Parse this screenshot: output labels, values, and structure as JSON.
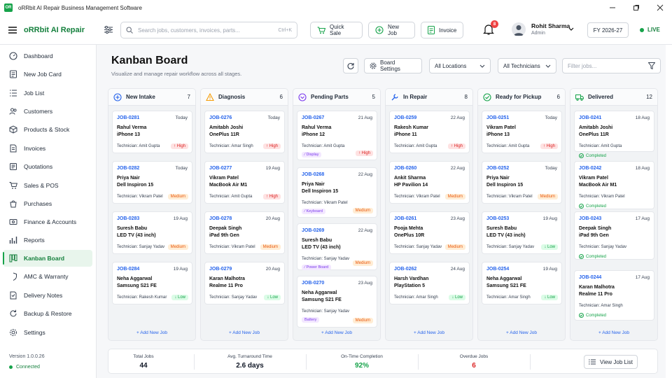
{
  "app": {
    "icon_text": "OR",
    "window_title": "oRRbit AI Repair Business Management Software",
    "brand": "oRRbit AI Repair"
  },
  "topbar": {
    "search_placeholder": "Search jobs, customers, invoices, parts...",
    "search_shortcut": "Ctrl+K",
    "quick_sale": "Quick Sale",
    "new_job": "New Job",
    "invoice": "Invoice",
    "notif_count": "8",
    "user_name": "Rohit Sharma",
    "user_role": "Admin",
    "fiscal_year": "FY 2026-27",
    "live": "LIVE"
  },
  "sidebar": {
    "items": [
      {
        "label": "Dashboard",
        "icon": "dashboard-icon",
        "active": false
      },
      {
        "label": "New Job Card",
        "icon": "job-card-icon",
        "active": false
      },
      {
        "label": "Job List",
        "icon": "list-icon",
        "active": false
      },
      {
        "label": "Customers",
        "icon": "users-icon",
        "active": false
      },
      {
        "label": "Products & Stock",
        "icon": "box-icon",
        "active": false
      },
      {
        "label": "Invoices",
        "icon": "invoice-icon",
        "active": false
      },
      {
        "label": "Quotations",
        "icon": "quotation-icon",
        "active": false
      },
      {
        "label": "Sales & POS",
        "icon": "cart-icon",
        "active": false
      },
      {
        "label": "Purchases",
        "icon": "purchase-icon",
        "active": false
      },
      {
        "label": "Finance & Accounts",
        "icon": "finance-icon",
        "active": false
      },
      {
        "label": "Reports",
        "icon": "reports-icon",
        "active": false
      },
      {
        "label": "Kanban Board",
        "icon": "kanban-icon",
        "active": true
      },
      {
        "label": "AMC & Warranty",
        "icon": "shield-icon",
        "active": false
      },
      {
        "label": "Delivery Notes",
        "icon": "delivery-icon",
        "active": false
      },
      {
        "label": "Backup & Restore",
        "icon": "backup-icon",
        "active": false
      },
      {
        "label": "Settings",
        "icon": "gear-icon",
        "active": false
      }
    ],
    "version": "Version 1.0.0.26",
    "status": "Connected"
  },
  "page": {
    "title": "Kanban Board",
    "subtitle": "Visualize and manage repair workflow across all stages.",
    "board_settings": "Board Settings",
    "locations": "All Locations",
    "technicians": "All Technicians",
    "filter_placeholder": "Filter jobs...",
    "add_new_job": "+ Add New Job"
  },
  "columns": [
    {
      "title": "New Intake",
      "count": "7",
      "icon": "plus-circle-icon",
      "color": "#2563eb",
      "cards": [
        {
          "id": "JOB-0281",
          "date": "Today",
          "customer": "Rahul Verma",
          "device": "iPhone 13",
          "tech": "Technician: Amit Gupta",
          "priority": "High",
          "type": "high"
        },
        {
          "id": "JOB-0282",
          "date": "Today",
          "customer": "Priya Nair",
          "device": "Dell Inspiron 15",
          "tech": "Technician: Vikram Patel",
          "priority": "Medium",
          "type": "medium"
        },
        {
          "id": "JOB-0283",
          "date": "19 Aug",
          "customer": "Suresh Babu",
          "device": "LED TV (43 inch)",
          "tech": "Technician: Sanjay Yadav",
          "priority": "Medium",
          "type": "medium"
        },
        {
          "id": "JOB-0284",
          "date": "19 Aug",
          "customer": "Neha Aggarwal",
          "device": "Samsung S21 FE",
          "tech": "Technician: Rakesh Kumar",
          "priority": "↓ Low",
          "type": "low"
        }
      ]
    },
    {
      "title": "Diagnosis",
      "count": "6",
      "icon": "warning-icon",
      "color": "#f59e0b",
      "cards": [
        {
          "id": "JOB-0276",
          "date": "Today",
          "customer": "Amitabh Joshi",
          "device": "OnePlus 11R",
          "tech": "Technician: Amar Singh",
          "priority": "High",
          "type": "high"
        },
        {
          "id": "JOB-0277",
          "date": "19 Aug",
          "customer": "Vikram Patel",
          "device": "MacBook Air M1",
          "tech": "Technician: Amit Gupta",
          "priority": "High",
          "type": "high"
        },
        {
          "id": "JOB-0278",
          "date": "20 Aug",
          "customer": "Deepak Singh",
          "device": "iPad 9th Gen",
          "tech": "Technician: Vikram Patel",
          "priority": "Medium",
          "type": "medium"
        },
        {
          "id": "JOB-0279",
          "date": "20 Aug",
          "customer": "Karan Malhotra",
          "device": "Realme 11 Pro",
          "tech": "Technician: Sanjay Yadav",
          "priority": "↓ Low",
          "type": "low"
        }
      ]
    },
    {
      "title": "Pending Parts",
      "count": "5",
      "icon": "parts-icon",
      "color": "#7c3aed",
      "cards": [
        {
          "id": "JOB-0267",
          "date": "21 Aug",
          "customer": "Rahul Verma",
          "device": "iPhone 12",
          "tech": "Technician: Amit Gupta",
          "priority": "High",
          "type": "high",
          "chip": "⁄ Display"
        },
        {
          "id": "JOB-0268",
          "date": "22 Aug",
          "customer": "Priya Nair",
          "device": "Dell Inspiron 15",
          "tech": "Technician: Vikram Patel",
          "priority": "Medium",
          "type": "medium",
          "chip": "⁄ Keyboard"
        },
        {
          "id": "JOB-0269",
          "date": "22 Aug",
          "customer": "Suresh Babu",
          "device": "LED TV (43 inch)",
          "tech": "Technician: Sanjay Yadav",
          "priority": "Medium",
          "type": "medium",
          "chip": "⁄ Power Board"
        },
        {
          "id": "JOB-0270",
          "date": "23 Aug",
          "customer": "Neha Aggarwal",
          "device": "Samsung S21 FE",
          "tech": "Technician: Sanjay Yadav",
          "priority": "Medium",
          "type": "medium",
          "chip": "Battery"
        }
      ]
    },
    {
      "title": "In Repair",
      "count": "8",
      "icon": "wrench-icon",
      "color": "#2563eb",
      "cards": [
        {
          "id": "JOB-0259",
          "date": "22 Aug",
          "customer": "Rakesh Kumar",
          "device": "iPhone 11",
          "tech": "Technician: Amit Gupta",
          "priority": "High",
          "type": "high"
        },
        {
          "id": "JOB-0260",
          "date": "22 Aug",
          "customer": "Ankit Sharma",
          "device": "HP Pavilion 14",
          "tech": "Technician: Vikram Patel",
          "priority": "Medium",
          "type": "medium"
        },
        {
          "id": "JOB-0261",
          "date": "23 Aug",
          "customer": "Pooja Mehta",
          "device": "OnePlus 10R",
          "tech": "Technician: Sanjay Yadav",
          "priority": "Medium",
          "type": "medium"
        },
        {
          "id": "JOB-0262",
          "date": "24 Aug",
          "customer": "Harsh Vardhan",
          "device": "PlayStation 5",
          "tech": "Technician: Amar Singh",
          "priority": "↓ Low",
          "type": "low"
        }
      ]
    },
    {
      "title": "Ready for Pickup",
      "count": "6",
      "icon": "check-circle-icon",
      "color": "#16a34a",
      "cards": [
        {
          "id": "JOB-0251",
          "date": "Today",
          "customer": "Vikram Patel",
          "device": "iPhone 13",
          "tech": "Technician: Amit Gupta",
          "priority": "High",
          "type": "high"
        },
        {
          "id": "JOB-0252",
          "date": "Today",
          "customer": "Priya Nair",
          "device": "Dell Inspiron 15",
          "tech": "Technician: Vikram Patel",
          "priority": "Medium",
          "type": "medium"
        },
        {
          "id": "JOB-0253",
          "date": "19 Aug",
          "customer": "Suresh Babu",
          "device": "LED TV (43 inch)",
          "tech": "Technician: Sanjay Yadav",
          "priority": "↓ Low",
          "type": "low"
        },
        {
          "id": "JOB-0254",
          "date": "19 Aug",
          "customer": "Neha Aggarwal",
          "device": "Samsung S21 FE",
          "tech": "Technician: Amar Singh",
          "priority": "↓ Low",
          "type": "low"
        }
      ]
    },
    {
      "title": "Delivered",
      "count": "12",
      "icon": "truck-icon",
      "color": "#16a34a",
      "cards": [
        {
          "id": "JOB-0241",
          "date": "18 Aug",
          "customer": "Amitabh Joshi",
          "device": "OnePlus 11R",
          "tech": "Technician: Amit Gupta",
          "priority": "Completed",
          "type": "completed"
        },
        {
          "id": "JOB-0242",
          "date": "18 Aug",
          "customer": "Vikram Patel",
          "device": "MacBook Air M1",
          "tech": "Technician: Vikram Patel",
          "priority": "Completed",
          "type": "completed"
        },
        {
          "id": "JOB-0243",
          "date": "17 Aug",
          "customer": "Deepak Singh",
          "device": "iPad 9th Gen",
          "tech": "Technician: Sanjay Yadav",
          "priority": "Completed",
          "type": "completed"
        },
        {
          "id": "JOB-0244",
          "date": "17 Aug",
          "customer": "Karan Malhotra",
          "device": "Realme 11 Pro",
          "tech": "Technician: Amar Singh",
          "priority": "Completed",
          "type": "completed"
        }
      ]
    }
  ],
  "stats": [
    {
      "label": "Total Jobs",
      "value": "44",
      "color": "#111827"
    },
    {
      "label": "Avg. Turnaround Time",
      "value": "2.6 days",
      "color": "#111827"
    },
    {
      "label": "On-Time Completion",
      "value": "92%",
      "color": "#16a34a"
    },
    {
      "label": "Overdue Jobs",
      "value": "6",
      "color": "#dc2626"
    }
  ],
  "view_job_list": "View Job List"
}
